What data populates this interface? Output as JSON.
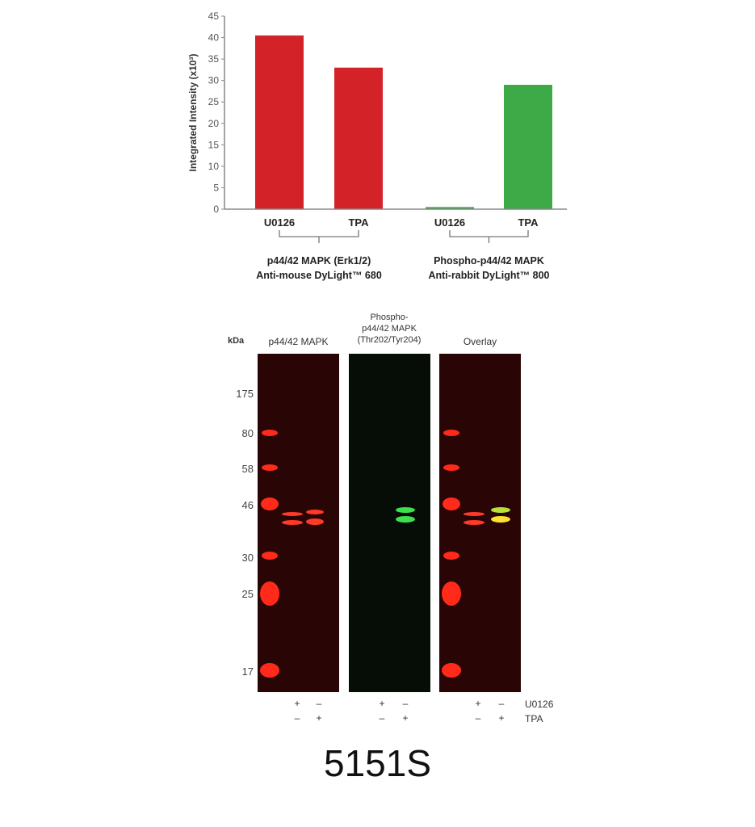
{
  "chart_data": {
    "type": "bar",
    "ylabel": "Integrated Intensity (x10³)",
    "ylim": [
      0,
      45
    ],
    "yticks": [
      0,
      5,
      10,
      15,
      20,
      25,
      30,
      35,
      40,
      45
    ],
    "grid": false,
    "categories": [
      "U0126",
      "TPA",
      "U0126",
      "TPA"
    ],
    "values": [
      40.5,
      33,
      0.5,
      29
    ],
    "bar_colors": [
      "#d42229",
      "#d42229",
      "#3daa47",
      "#3daa47"
    ],
    "groups": [
      {
        "line1": "p44/42 MAPK (Erk1/2)",
        "line2": "Anti-mouse DyLight™ 680"
      },
      {
        "line1": "Phospho-p44/42 MAPK",
        "line2": "Anti-rabbit DyLight™ 800"
      }
    ]
  },
  "blot": {
    "kda_label": "kDa",
    "panels": [
      {
        "title": "p44/42 MAPK"
      },
      {
        "title": "Phospho-\np44/42 MAPK\n(Thr202/Tyr204)"
      },
      {
        "title": "Overlay"
      }
    ],
    "markers": [
      "175",
      "80",
      "58",
      "46",
      "30",
      "25",
      "17"
    ],
    "treatments": [
      {
        "name": "U0126",
        "signs": [
          "+",
          "–"
        ]
      },
      {
        "name": "TPA",
        "signs": [
          "–",
          "+"
        ]
      }
    ]
  },
  "product_code": "5151S"
}
